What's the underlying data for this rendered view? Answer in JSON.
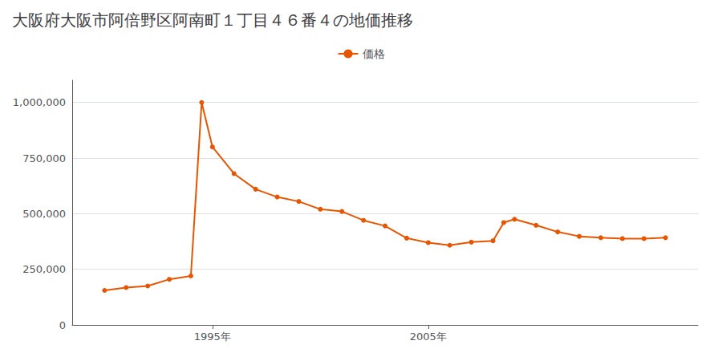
{
  "chart_data": {
    "type": "line",
    "title": "大阪府大阪市阿倍野区阿南町１丁目４６番４の地価推移",
    "x": [
      1990,
      1991,
      1992,
      1993,
      1994,
      1994.5,
      1995,
      1996,
      1997,
      1998,
      1999,
      2000,
      2001,
      2002,
      2003,
      2004,
      2005,
      2006,
      2007,
      2008,
      2008.5,
      2009,
      2010,
      2011,
      2012,
      2013,
      2014,
      2015,
      2016
    ],
    "series": [
      {
        "name": "価格",
        "color": "#e85500",
        "marker": "circle",
        "values": [
          155000,
          168000,
          175000,
          205000,
          220000,
          1000000,
          800000,
          680000,
          610000,
          575000,
          555000,
          520000,
          510000,
          470000,
          445000,
          390000,
          370000,
          358000,
          372000,
          378000,
          460000,
          475000,
          448000,
          418000,
          398000,
          392000,
          388000,
          388000,
          392000
        ]
      }
    ],
    "xlim": [
      1988.5,
      2017.5
    ],
    "xticks": [
      {
        "value": 1995,
        "label": "1995年"
      },
      {
        "value": 2005,
        "label": "2005年"
      }
    ],
    "ylim": [
      0,
      1100000
    ],
    "yticks": [
      0,
      {
        "value": 250000,
        "label": "250,000"
      },
      {
        "value": 500000,
        "label": "500,000"
      },
      {
        "value": 750000,
        "label": "750,000"
      },
      {
        "value": 1000000,
        "label": "1,000,000"
      }
    ],
    "grid": true,
    "legend": "top"
  }
}
